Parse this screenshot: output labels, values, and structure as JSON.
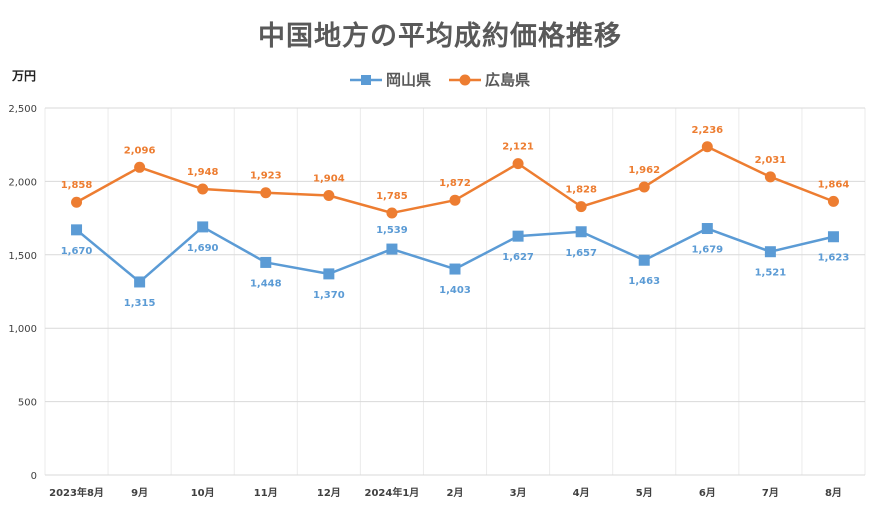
{
  "chart_data": {
    "type": "line",
    "title": "中国地方の平均成約価格推移",
    "unit_label": "万円",
    "categories": [
      "2023年8月",
      "9月",
      "10月",
      "11月",
      "12月",
      "2024年1月",
      "2月",
      "3月",
      "4月",
      "5月",
      "6月",
      "7月",
      "8月"
    ],
    "series": [
      {
        "name": "岡山県",
        "color": "#5B9BD5",
        "marker": "square",
        "values": [
          1670,
          1315,
          1690,
          1448,
          1370,
          1539,
          1403,
          1627,
          1657,
          1463,
          1679,
          1521,
          1623
        ],
        "labels": [
          "1,670",
          "1,315",
          "1,690",
          "1,448",
          "1,370",
          "1,539",
          "1,403",
          "1,627",
          "1,657",
          "1,463",
          "1,679",
          "1,521",
          "1,623"
        ]
      },
      {
        "name": "広島県",
        "color": "#ED7D31",
        "marker": "circle",
        "values": [
          1858,
          2096,
          1948,
          1923,
          1904,
          1785,
          1872,
          2121,
          1828,
          1962,
          2236,
          2031,
          1864
        ],
        "labels": [
          "1,858",
          "2,096",
          "1,948",
          "1,923",
          "1,904",
          "1,785",
          "1,872",
          "2,121",
          "1,828",
          "1,962",
          "2,236",
          "2,031",
          "1,864"
        ]
      }
    ],
    "y_ticks": [
      0,
      500,
      1000,
      1500,
      2000,
      2500
    ],
    "y_tick_labels": [
      "0",
      "500",
      "1,000",
      "1,500",
      "2,000",
      "2,500"
    ],
    "ylim": [
      0,
      2500
    ],
    "grid": true,
    "legend_position": "top-center"
  }
}
